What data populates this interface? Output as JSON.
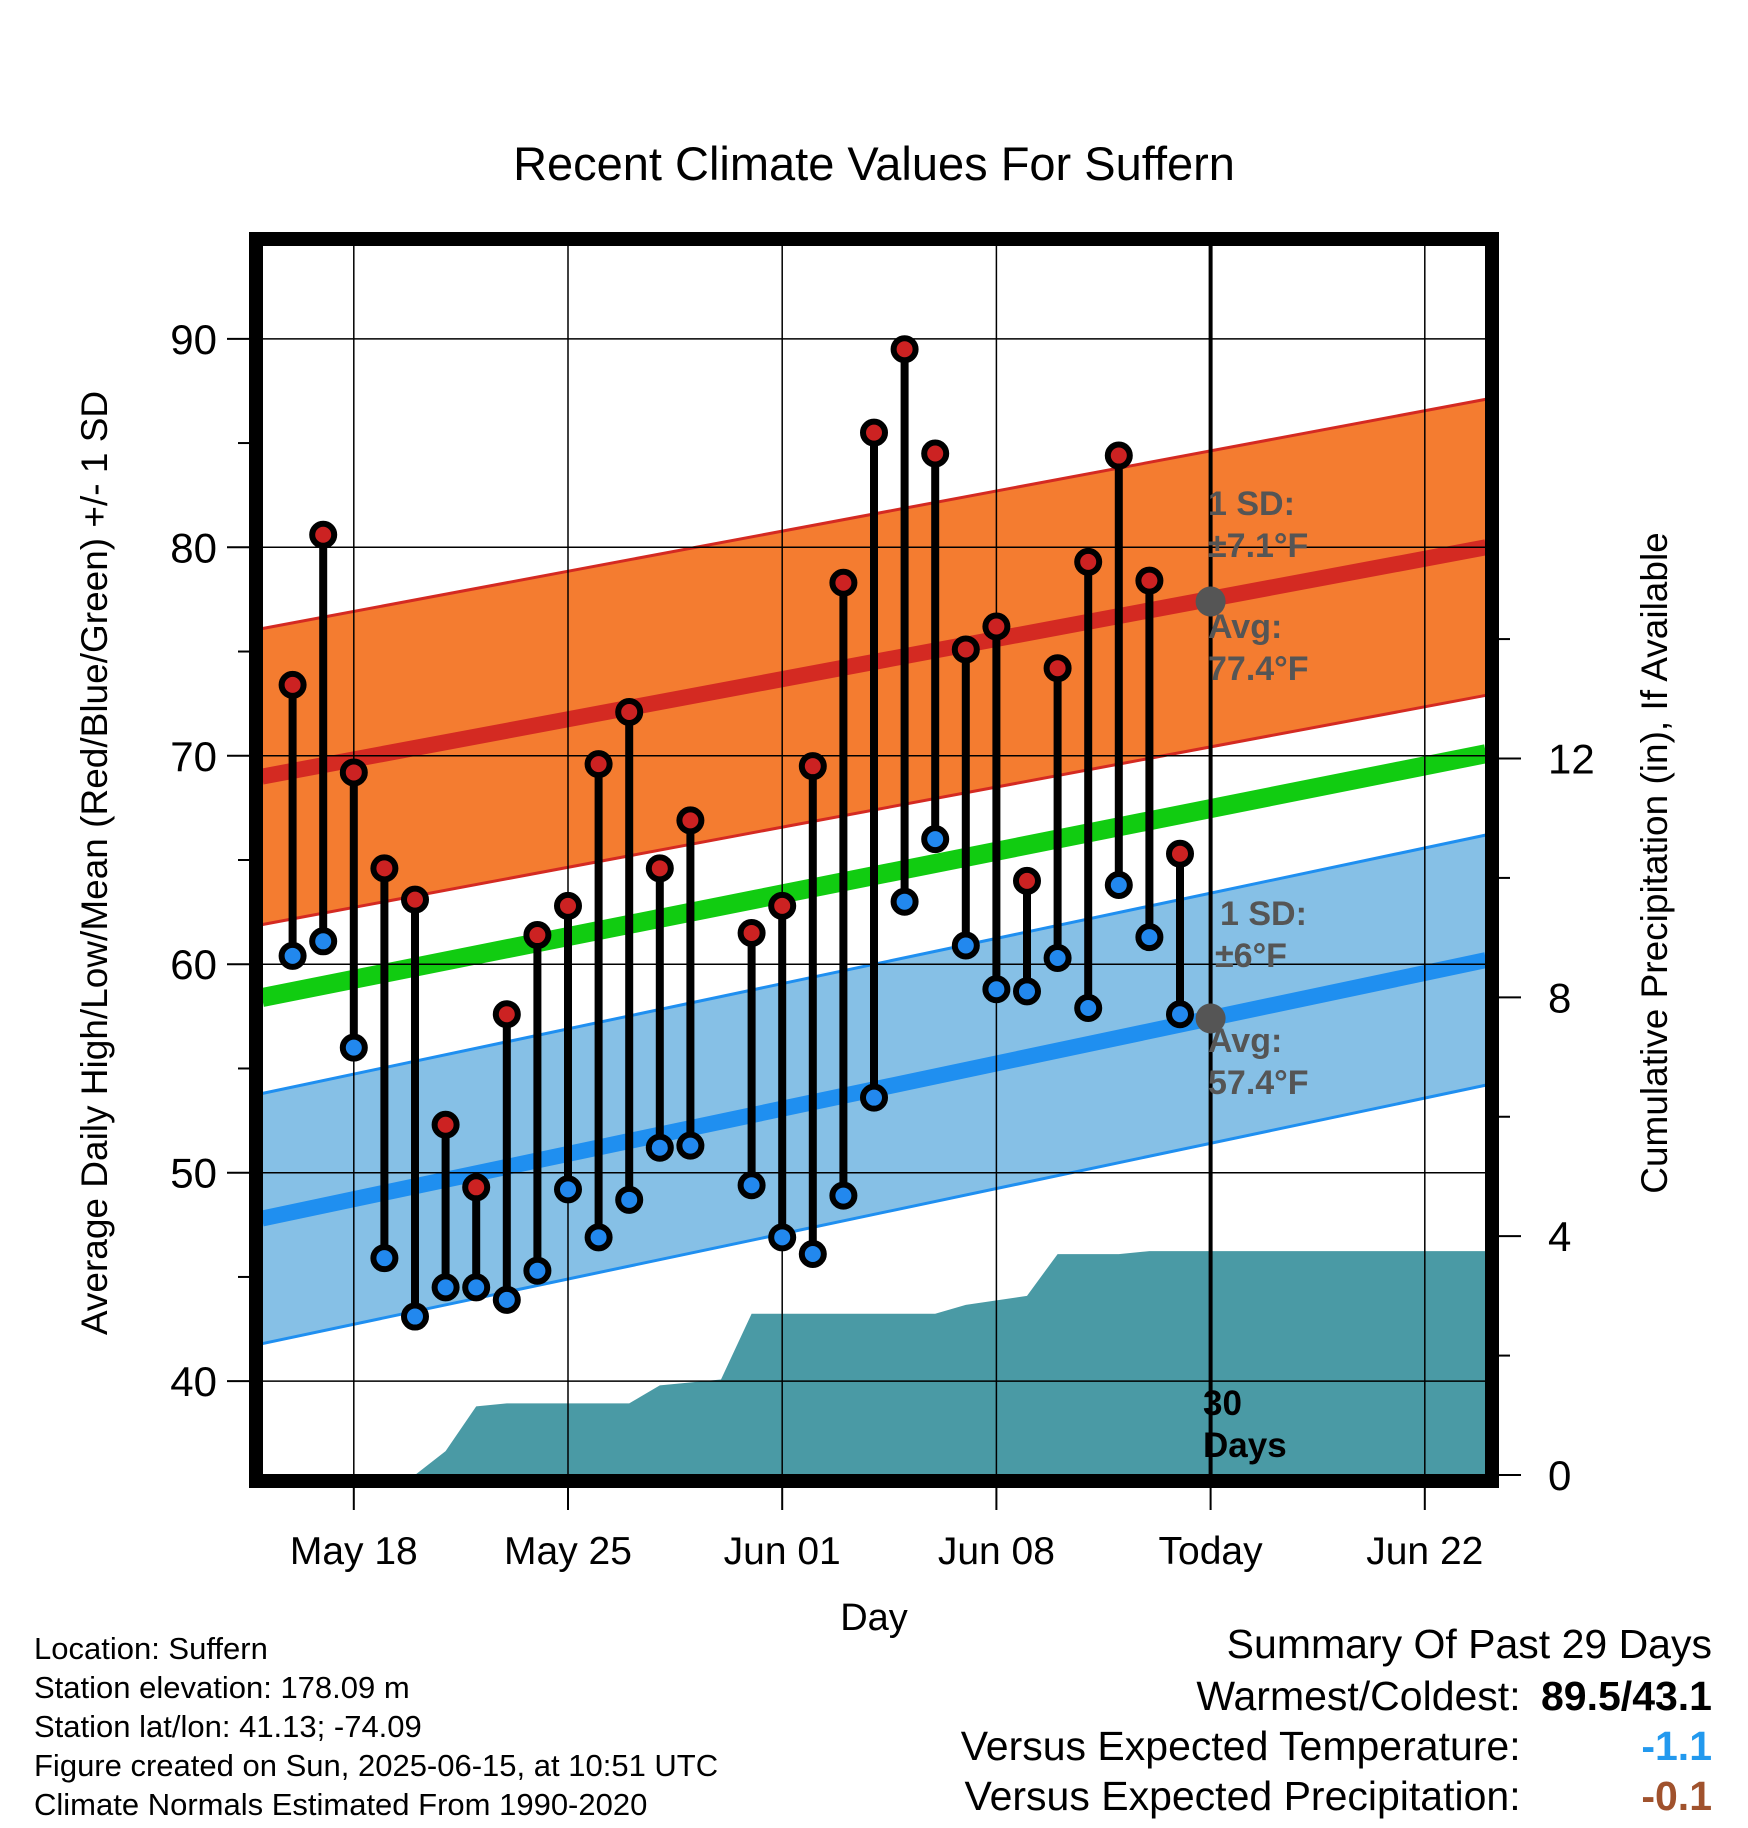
{
  "chart_data": {
    "type": "line",
    "title": "Recent Climate Values For Suffern",
    "xlabel": "Day",
    "ylabel": "Average Daily High/Low/Mean (Red/Blue/Green) +/- 1 SD",
    "y2label": "Cumulative Precipitation (in), If Available",
    "xlim": [
      "2025-05-15",
      "2025-06-24"
    ],
    "ylim": [
      35.5,
      94.5
    ],
    "y2lim": [
      0,
      20.6
    ],
    "x_ticks": [
      {
        "date": "2025-05-18",
        "label": "May 18"
      },
      {
        "date": "2025-05-25",
        "label": "May 25"
      },
      {
        "date": "2025-06-01",
        "label": "Jun 01"
      },
      {
        "date": "2025-06-08",
        "label": "Jun 08"
      },
      {
        "date": "2025-06-15",
        "label": "Today"
      },
      {
        "date": "2025-06-22",
        "label": "Jun 22"
      }
    ],
    "y_ticks": [
      40,
      50,
      60,
      70,
      80,
      90
    ],
    "y2_ticks": [
      0,
      4,
      8,
      12
    ],
    "grid": true,
    "today": "2025-06-15",
    "today_label_1": "30",
    "today_label_2": "Days",
    "normals": {
      "high": {
        "start": 69.0,
        "end": 80.0,
        "sd": 7.1
      },
      "low": {
        "start": 47.8,
        "end": 60.2,
        "sd": 6.0
      },
      "mean": {
        "start": 58.4,
        "end": 70.1
      }
    },
    "annotations": {
      "high_sd_1": "1 SD:",
      "high_sd_2": "±7.1°F",
      "high_avg_1": "Avg:",
      "high_avg_2": "77.4°F",
      "low_sd_1": "1 SD:",
      "low_sd_2": "±6°F",
      "low_avg_1": "Avg:",
      "low_avg_2": "57.4°F",
      "high_avg_value": 77.4,
      "low_avg_value": 57.4
    },
    "series": [
      {
        "name": "High",
        "color": "#cc2222",
        "points": [
          {
            "x": "2025-05-16",
            "y": 73.4
          },
          {
            "x": "2025-05-17",
            "y": 80.6
          },
          {
            "x": "2025-05-18",
            "y": 69.2
          },
          {
            "x": "2025-05-19",
            "y": 64.6
          },
          {
            "x": "2025-05-20",
            "y": 63.1
          },
          {
            "x": "2025-05-21",
            "y": 52.3
          },
          {
            "x": "2025-05-22",
            "y": 49.3
          },
          {
            "x": "2025-05-23",
            "y": 57.6
          },
          {
            "x": "2025-05-24",
            "y": 61.4
          },
          {
            "x": "2025-05-25",
            "y": 62.8
          },
          {
            "x": "2025-05-26",
            "y": 69.6
          },
          {
            "x": "2025-05-27",
            "y": 72.1
          },
          {
            "x": "2025-05-28",
            "y": 64.6
          },
          {
            "x": "2025-05-29",
            "y": 66.9
          },
          {
            "x": "2025-05-31",
            "y": 61.5
          },
          {
            "x": "2025-06-01",
            "y": 62.8
          },
          {
            "x": "2025-06-02",
            "y": 69.5
          },
          {
            "x": "2025-06-03",
            "y": 78.3
          },
          {
            "x": "2025-06-04",
            "y": 85.5
          },
          {
            "x": "2025-06-05",
            "y": 89.5
          },
          {
            "x": "2025-06-06",
            "y": 84.5
          },
          {
            "x": "2025-06-07",
            "y": 75.1
          },
          {
            "x": "2025-06-08",
            "y": 76.2
          },
          {
            "x": "2025-06-09",
            "y": 64.0
          },
          {
            "x": "2025-06-10",
            "y": 74.2
          },
          {
            "x": "2025-06-11",
            "y": 79.3
          },
          {
            "x": "2025-06-12",
            "y": 84.4
          },
          {
            "x": "2025-06-13",
            "y": 78.4
          },
          {
            "x": "2025-06-14",
            "y": 65.3
          }
        ]
      },
      {
        "name": "Low",
        "color": "#2288ee",
        "points": [
          {
            "x": "2025-05-16",
            "y": 60.4
          },
          {
            "x": "2025-05-17",
            "y": 61.1
          },
          {
            "x": "2025-05-18",
            "y": 56.0
          },
          {
            "x": "2025-05-19",
            "y": 45.9
          },
          {
            "x": "2025-05-20",
            "y": 43.1
          },
          {
            "x": "2025-05-21",
            "y": 44.5
          },
          {
            "x": "2025-05-22",
            "y": 44.5
          },
          {
            "x": "2025-05-23",
            "y": 43.9
          },
          {
            "x": "2025-05-24",
            "y": 45.3
          },
          {
            "x": "2025-05-25",
            "y": 49.2
          },
          {
            "x": "2025-05-26",
            "y": 46.9
          },
          {
            "x": "2025-05-27",
            "y": 48.7
          },
          {
            "x": "2025-05-28",
            "y": 51.2
          },
          {
            "x": "2025-05-29",
            "y": 51.3
          },
          {
            "x": "2025-05-31",
            "y": 49.4
          },
          {
            "x": "2025-06-01",
            "y": 46.9
          },
          {
            "x": "2025-06-02",
            "y": 46.1
          },
          {
            "x": "2025-06-03",
            "y": 48.9
          },
          {
            "x": "2025-06-04",
            "y": 53.6
          },
          {
            "x": "2025-06-05",
            "y": 63.0
          },
          {
            "x": "2025-06-06",
            "y": 66.0
          },
          {
            "x": "2025-06-07",
            "y": 60.9
          },
          {
            "x": "2025-06-08",
            "y": 58.8
          },
          {
            "x": "2025-06-09",
            "y": 58.7
          },
          {
            "x": "2025-06-10",
            "y": 60.3
          },
          {
            "x": "2025-06-11",
            "y": 57.9
          },
          {
            "x": "2025-06-12",
            "y": 63.8
          },
          {
            "x": "2025-06-13",
            "y": 61.3
          },
          {
            "x": "2025-06-14",
            "y": 57.6
          }
        ]
      },
      {
        "name": "Cumulative Precipitation",
        "color": "#4a9aa5",
        "points": [
          {
            "x": "2025-05-15",
            "y": 0.0
          },
          {
            "x": "2025-05-20",
            "y": 0.0
          },
          {
            "x": "2025-05-21",
            "y": 0.4
          },
          {
            "x": "2025-05-22",
            "y": 1.15
          },
          {
            "x": "2025-05-23",
            "y": 1.2
          },
          {
            "x": "2025-05-27",
            "y": 1.2
          },
          {
            "x": "2025-05-28",
            "y": 1.5
          },
          {
            "x": "2025-05-30",
            "y": 1.6
          },
          {
            "x": "2025-05-31",
            "y": 2.7
          },
          {
            "x": "2025-06-06",
            "y": 2.7
          },
          {
            "x": "2025-06-07",
            "y": 2.85
          },
          {
            "x": "2025-06-09",
            "y": 3.0
          },
          {
            "x": "2025-06-10",
            "y": 3.7
          },
          {
            "x": "2025-06-12",
            "y": 3.7
          },
          {
            "x": "2025-06-13",
            "y": 3.75
          },
          {
            "x": "2025-06-24",
            "y": 3.75
          }
        ]
      }
    ]
  },
  "info": {
    "location": "Location: Suffern",
    "elevation": "Station elevation: 178.09 m",
    "latlon": "Station lat/lon: 41.13; -74.09",
    "created": "Figure created on Sun, 2025-06-15, at 10:51 UTC",
    "normals": "Climate Normals Estimated From 1990-2020"
  },
  "summary": {
    "title": "Summary Of Past 29 Days",
    "warm_label": "Warmest/Coldest:",
    "warm_value": "89.5/43.1",
    "temp_label": "Versus Expected Temperature:",
    "temp_value": "-1.1",
    "temp_color": "#2299ee",
    "precip_label": "Versus Expected Precipitation:",
    "precip_value": "-0.1",
    "precip_color": "#a0522d"
  },
  "colors": {
    "high_band": "#f47c30",
    "high_line": "#d42a22",
    "low_band": "#86c0e6",
    "low_line": "#1f8ff0",
    "mean_line": "#11cc11",
    "precip": "#4a9aa5",
    "avg_marker": "#555555"
  }
}
